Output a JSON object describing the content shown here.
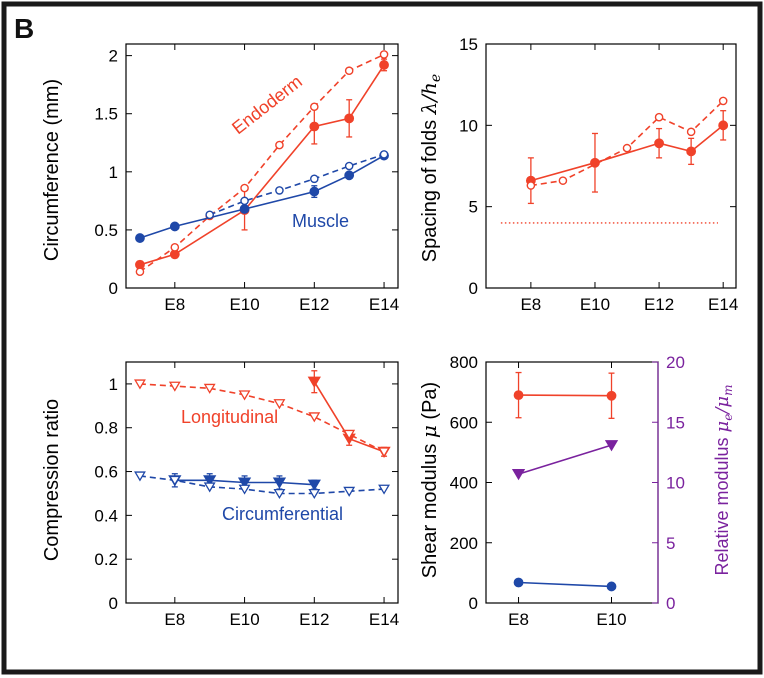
{
  "panel_letter": "B",
  "colors": {
    "red": "#f0422a",
    "blue": "#1f48a8",
    "purple": "#7a229e",
    "frame": "#1a1a1a"
  },
  "chart_data": [
    {
      "id": "circumference",
      "type": "line",
      "xlabel": "",
      "ylabel": "Circumference (mm)",
      "ylim": [
        0,
        2.1
      ],
      "xlim": [
        6.6,
        14.4
      ],
      "xticks": [
        8,
        10,
        12,
        14
      ],
      "xtick_labels": [
        "E8",
        "E10",
        "E12",
        "E14"
      ],
      "yticks": [
        0,
        0.5,
        1,
        1.5,
        2
      ],
      "ytick_labels": [
        "0",
        "0.5",
        "1",
        "1.5",
        "2"
      ],
      "annotations": [
        {
          "text": "Endoderm",
          "color": "red"
        },
        {
          "text": "Muscle",
          "color": "blue"
        }
      ],
      "series": [
        {
          "group": "Endoderm",
          "kind": "measured",
          "color": "red",
          "style": "solid",
          "marker": "filled-circle",
          "x": [
            7,
            8,
            10,
            12,
            13,
            14
          ],
          "y": [
            0.2,
            0.29,
            0.67,
            1.39,
            1.46,
            1.92
          ],
          "err": [
            0.03,
            0.03,
            0.17,
            0.15,
            0.16,
            0.05
          ]
        },
        {
          "group": "Endoderm",
          "kind": "model",
          "color": "red",
          "style": "dashed",
          "marker": "open-circle",
          "x": [
            7,
            8,
            9,
            10,
            11,
            12,
            13,
            14
          ],
          "y": [
            0.14,
            0.35,
            0.62,
            0.86,
            1.23,
            1.56,
            1.87,
            2.01
          ]
        },
        {
          "group": "Muscle",
          "kind": "measured",
          "color": "blue",
          "style": "solid",
          "marker": "filled-circle",
          "x": [
            7,
            8,
            10,
            12,
            13,
            14
          ],
          "y": [
            0.43,
            0.53,
            0.68,
            0.83,
            0.97,
            1.14
          ],
          "err": [
            0.02,
            0.02,
            0.02,
            0.05,
            0.02,
            0.02
          ]
        },
        {
          "group": "Muscle",
          "kind": "model",
          "color": "blue",
          "style": "dashed",
          "marker": "open-circle",
          "x": [
            9,
            10,
            11,
            12,
            13,
            14
          ],
          "y": [
            0.63,
            0.75,
            0.84,
            0.94,
            1.05,
            1.15
          ]
        }
      ]
    },
    {
      "id": "spacing",
      "type": "line",
      "xlabel": "",
      "ylabel_prefix": "Spacing of folds ",
      "ylabel_math": "λ/h",
      "ylabel_sub": "e",
      "ylim": [
        0,
        15
      ],
      "xlim": [
        6.6,
        14.4
      ],
      "xticks": [
        8,
        10,
        12,
        14
      ],
      "xtick_labels": [
        "E8",
        "E10",
        "E12",
        "E14"
      ],
      "yticks": [
        0,
        5,
        10,
        15
      ],
      "ytick_labels": [
        "0",
        "5",
        "10",
        "15"
      ],
      "reference_line": {
        "y": 4,
        "color": "red",
        "style": "dotted"
      },
      "series": [
        {
          "kind": "measured",
          "color": "red",
          "style": "solid",
          "marker": "filled-circle",
          "x": [
            8,
            10,
            12,
            13,
            14
          ],
          "y": [
            6.6,
            7.7,
            8.9,
            8.4,
            10.0
          ],
          "err": [
            1.4,
            1.8,
            0.9,
            0.8,
            0.9
          ]
        },
        {
          "kind": "model",
          "color": "red",
          "style": "dashed",
          "marker": "open-circle",
          "x": [
            8,
            9,
            11,
            12,
            13,
            14
          ],
          "y": [
            6.3,
            6.6,
            8.6,
            10.5,
            9.6,
            11.5
          ]
        }
      ]
    },
    {
      "id": "compression",
      "type": "line",
      "xlabel": "",
      "ylabel": "Compression ratio",
      "ylim": [
        0,
        1.1
      ],
      "xlim": [
        6.6,
        14.4
      ],
      "xticks": [
        8,
        10,
        12,
        14
      ],
      "xtick_labels": [
        "E8",
        "E10",
        "E12",
        "E14"
      ],
      "yticks": [
        0,
        0.2,
        0.4,
        0.6,
        0.8,
        1
      ],
      "ytick_labels": [
        "0",
        "0.2",
        "0.4",
        "0.6",
        "0.8",
        "1"
      ],
      "annotations": [
        {
          "text": "Longitudinal",
          "color": "red"
        },
        {
          "text": "Circumferential",
          "color": "blue"
        }
      ],
      "series": [
        {
          "group": "Longitudinal",
          "kind": "measured",
          "color": "red",
          "style": "solid",
          "marker": "filled-triangle-down",
          "x": [
            12,
            13,
            14
          ],
          "y": [
            1.01,
            0.75,
            0.69
          ],
          "err": [
            0.05,
            0.03,
            0.02
          ]
        },
        {
          "group": "Longitudinal",
          "kind": "model",
          "color": "red",
          "style": "dashed",
          "marker": "open-triangle-down",
          "x": [
            7,
            8,
            9,
            10,
            11,
            12,
            13,
            14
          ],
          "y": [
            1.0,
            0.99,
            0.98,
            0.95,
            0.91,
            0.85,
            0.77,
            0.69
          ]
        },
        {
          "group": "Circumferential",
          "kind": "measured",
          "color": "blue",
          "style": "solid",
          "marker": "filled-triangle-down",
          "x": [
            8,
            9,
            10,
            11,
            12
          ],
          "y": [
            0.56,
            0.56,
            0.55,
            0.55,
            0.54
          ],
          "err": [
            0.03,
            0.03,
            0.03,
            0.03,
            0.02
          ]
        },
        {
          "group": "Circumferential",
          "kind": "model",
          "color": "blue",
          "style": "dashed",
          "marker": "open-triangle-down",
          "x": [
            7,
            8,
            9,
            10,
            11,
            12,
            13,
            14
          ],
          "y": [
            0.58,
            0.56,
            0.53,
            0.52,
            0.5,
            0.5,
            0.51,
            0.52
          ]
        }
      ]
    },
    {
      "id": "modulus",
      "type": "line",
      "xlabel": "",
      "ylabel_prefix": "Shear modulus ",
      "ylabel_math": "μ",
      "ylabel_suffix": " (Pa)",
      "y2label_prefix": "Relative modulus ",
      "y2label_math": "μ",
      "y2label_sub_a": "e",
      "y2label_sub_b": "m",
      "y2label_slash": "/μ",
      "ylim": [
        0,
        800
      ],
      "y2lim": [
        0,
        20
      ],
      "xlim": [
        7.3,
        11
      ],
      "xticks": [
        8,
        10
      ],
      "xtick_labels": [
        "E8",
        "E10"
      ],
      "yticks": [
        0,
        200,
        400,
        600,
        800
      ],
      "ytick_labels": [
        "0",
        "200",
        "400",
        "600",
        "800"
      ],
      "y2ticks": [
        0,
        5,
        10,
        15,
        20
      ],
      "y2tick_labels": [
        "0",
        "5",
        "10",
        "15",
        "20"
      ],
      "series": [
        {
          "kind": "endoderm",
          "axis": "left",
          "color": "red",
          "style": "solid",
          "marker": "filled-circle",
          "x": [
            8,
            10
          ],
          "y": [
            690,
            688
          ],
          "err": [
            75,
            75
          ]
        },
        {
          "kind": "muscle",
          "axis": "left",
          "color": "blue",
          "style": "solid",
          "marker": "filled-circle",
          "x": [
            8,
            10
          ],
          "y": [
            68,
            55
          ],
          "err": [
            5,
            8
          ]
        },
        {
          "kind": "relative",
          "axis": "right",
          "color": "purple",
          "style": "solid",
          "marker": "filled-triangle-down",
          "x": [
            8,
            10
          ],
          "y": [
            10.7,
            13.1
          ]
        }
      ]
    }
  ]
}
